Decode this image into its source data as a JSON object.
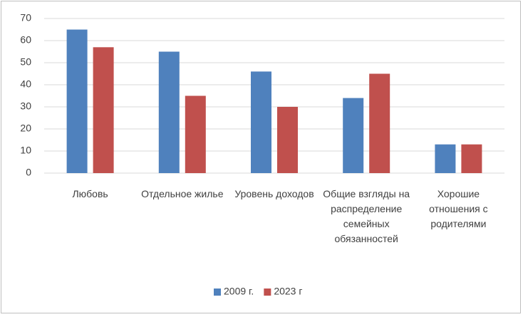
{
  "chart_data": {
    "type": "bar",
    "categories": [
      "Любовь",
      "Отдельное жилье",
      "Уровень доходов",
      "Общие взгляды на распределение семейных обязанностей",
      "Хорошие отношения с родителями"
    ],
    "series": [
      {
        "name": "2009 г.",
        "color": "#4f81bd",
        "values": [
          65,
          55,
          46,
          34,
          13
        ]
      },
      {
        "name": "2023 г",
        "color": "#c0504d",
        "values": [
          57,
          35,
          30,
          45,
          13
        ]
      }
    ],
    "ylim": [
      0,
      70
    ],
    "yticks": [
      0,
      10,
      20,
      30,
      40,
      50,
      60,
      70
    ],
    "grid": true,
    "legend": "bottom"
  }
}
